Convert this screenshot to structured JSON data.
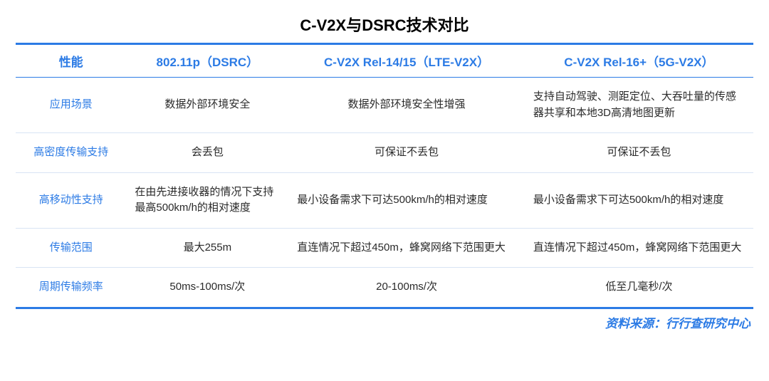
{
  "title": "C-V2X与DSRC技术对比",
  "source": "资料来源：行行查研究中心",
  "colors": {
    "accent": "#2c7be5",
    "text": "#2a2a2a",
    "row_border": "#d8e4f4",
    "background": "#ffffff"
  },
  "table": {
    "headers": {
      "label": "性能",
      "col1": "802.11p（DSRC）",
      "col2": "C-V2X Rel-14/15（LTE-V2X）",
      "col3": "C-V2X Rel-16+（5G-V2X）"
    },
    "rows": [
      {
        "label": "应用场景",
        "col1": "数据外部环境安全",
        "col1_align": "center",
        "col2": "数据外部环境安全性增强",
        "col2_align": "center",
        "col3": "支持自动驾驶、测距定位、大吞吐量的传感器共享和本地3D高清地图更新",
        "col3_align": "left"
      },
      {
        "label": "高密度传输支持",
        "col1": "会丢包",
        "col1_align": "center",
        "col2": "可保证不丢包",
        "col2_align": "center",
        "col3": "可保证不丢包",
        "col3_align": "center"
      },
      {
        "label": "高移动性支持",
        "col1": "在由先进接收器的情况下支持最高500km/h的相对速度",
        "col1_align": "left",
        "col2": "最小设备需求下可达500km/h的相对速度",
        "col2_align": "left",
        "col3": "最小设备需求下可达500km/h的相对速度",
        "col3_align": "left"
      },
      {
        "label": "传输范围",
        "col1": "最大255m",
        "col1_align": "center",
        "col2": "直连情况下超过450m，蜂窝网络下范围更大",
        "col2_align": "left",
        "col3": "直连情况下超过450m，蜂窝网络下范围更大",
        "col3_align": "left"
      },
      {
        "label": "周期传输频率",
        "col1": "50ms-100ms/次",
        "col1_align": "center",
        "col2": "20-100ms/次",
        "col2_align": "center",
        "col3": "低至几毫秒/次",
        "col3_align": "center"
      }
    ]
  }
}
